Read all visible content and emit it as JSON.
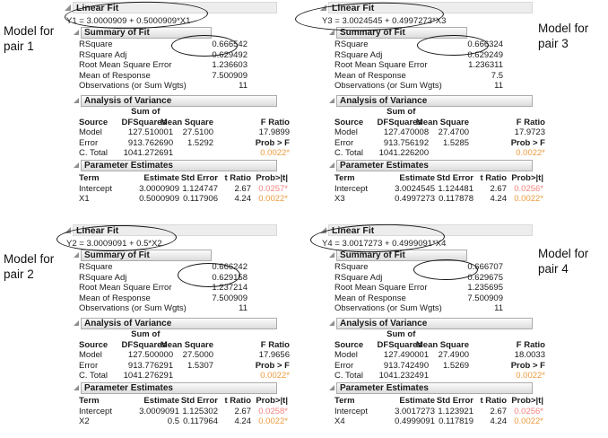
{
  "pair_labels": [
    "Model for pair 1",
    "Model for pair 3",
    "Model for pair 2",
    "Model for pair 4"
  ],
  "labels": {
    "linear_fit": "Linear Fit",
    "summary_of_fit": "Summary of Fit",
    "anova": "Analysis of Variance",
    "parameter_estimates": "Parameter Estimates",
    "sum_of": "Sum of",
    "prob_f": "Prob > F",
    "summary_rows": [
      "RSquare",
      "RSquare Adj",
      "Root Mean Square Error",
      "Mean of Response",
      "Observations (or Sum Wgts)"
    ],
    "anova_headers": [
      "Source",
      "DF",
      "Squares",
      "Mean Square",
      "F Ratio"
    ],
    "anova_sources": [
      "Model",
      "Error",
      "C. Total"
    ],
    "param_headers": [
      "Term",
      "Estimate",
      "Std Error",
      "t Ratio",
      "Prob>|t|"
    ]
  },
  "colors": {
    "significant_orange": "#ef9a3d",
    "significant_salmon": "#f4837d",
    "header_bar_border": "#ababab"
  },
  "panels": [
    {
      "equation": "Y1 = 3.0000909 + 0.5000909*X1",
      "summary_values": [
        "0.666542",
        "0.629492",
        "1.236603",
        "7.500909",
        "11"
      ],
      "anova": {
        "model": [
          "1",
          "27.510001",
          "27.5100",
          "17.9899"
        ],
        "error": [
          "9",
          "13.762690",
          "1.5292"
        ],
        "total": [
          "10",
          "41.272691"
        ],
        "prob_f_value": "0.0022*"
      },
      "params": [
        [
          "Intercept",
          "3.0000909",
          "1.124747",
          "2.67",
          "0.0257*"
        ],
        [
          "X1",
          "0.5000909",
          "0.117906",
          "4.24",
          "0.0022*"
        ]
      ]
    },
    {
      "equation": "Y3 = 3.0024545 + 0.4997273*X3",
      "summary_values": [
        "0.666324",
        "0.629249",
        "1.236311",
        "7.5",
        "11"
      ],
      "anova": {
        "model": [
          "1",
          "27.470008",
          "27.4700",
          "17.9723"
        ],
        "error": [
          "9",
          "13.756192",
          "1.5285"
        ],
        "total": [
          "10",
          "41.226200"
        ],
        "prob_f_value": "0.0022*"
      },
      "params": [
        [
          "Intercept",
          "3.0024545",
          "1.124481",
          "2.67",
          "0.0256*"
        ],
        [
          "X3",
          "0.4997273",
          "0.117878",
          "4.24",
          "0.0022*"
        ]
      ]
    },
    {
      "equation": "Y2 = 3.0009091 + 0.5*X2",
      "summary_values": [
        "0.666242",
        "0.629158",
        "1.237214",
        "7.500909",
        "11"
      ],
      "anova": {
        "model": [
          "1",
          "27.500000",
          "27.5000",
          "17.9656"
        ],
        "error": [
          "9",
          "13.776291",
          "1.5307"
        ],
        "total": [
          "10",
          "41.276291"
        ],
        "prob_f_value": "0.0022*"
      },
      "params": [
        [
          "Intercept",
          "3.0009091",
          "1.125302",
          "2.67",
          "0.0258*"
        ],
        [
          "X2",
          "0.5",
          "0.117964",
          "4.24",
          "0.0022*"
        ]
      ]
    },
    {
      "equation": "Y4 = 3.0017273 + 0.4999091*X4",
      "summary_values": [
        "0.666707",
        "0.629675",
        "1.235695",
        "7.500909",
        "11"
      ],
      "anova": {
        "model": [
          "1",
          "27.490001",
          "27.4900",
          "18.0033"
        ],
        "error": [
          "9",
          "13.742490",
          "1.5269"
        ],
        "total": [
          "10",
          "41.232491"
        ],
        "prob_f_value": "0.0022*"
      },
      "params": [
        [
          "Intercept",
          "3.0017273",
          "1.123921",
          "2.67",
          "0.0256*"
        ],
        [
          "X4",
          "0.4999091",
          "0.117819",
          "4.24",
          "0.0022*"
        ]
      ]
    }
  ]
}
